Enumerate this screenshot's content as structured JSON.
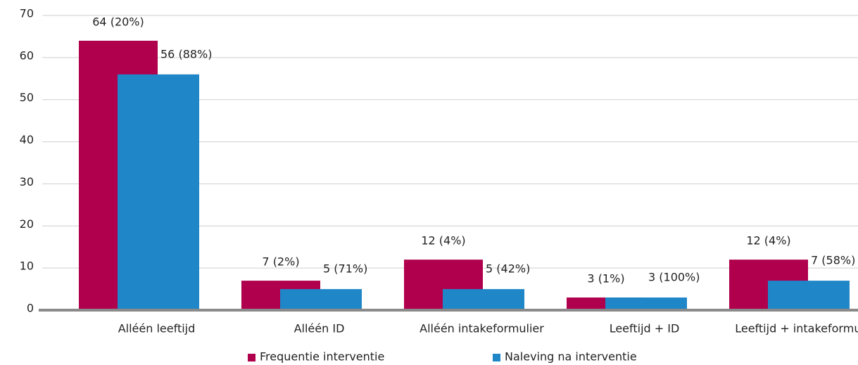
{
  "chart_data": {
    "type": "bar",
    "categories": [
      "Alléén leeftijd",
      "Alléén ID",
      "Alléén intakeformulier",
      "Leeftijd + ID",
      "Leeftijd + intakeformulier"
    ],
    "series": [
      {
        "name": "Frequentie interventie",
        "color": "#b0004d",
        "values": [
          64,
          7,
          12,
          3,
          12
        ],
        "value_labels": [
          "64 (20%)",
          "7 (2%)",
          "12 (4%)",
          "3 (1%)",
          "12 (4%)"
        ]
      },
      {
        "name": "Naleving na interventie",
        "color": "#1f86c8",
        "values": [
          56,
          5,
          5,
          3,
          7
        ],
        "value_labels": [
          "56 (88%)",
          "5 (71%)",
          "5 (42%)",
          "3 (100%)",
          "7 (58%)"
        ]
      }
    ],
    "ylim": [
      0,
      70
    ],
    "yticks": [
      0,
      10,
      20,
      30,
      40,
      50,
      60,
      70
    ],
    "grid": true
  }
}
